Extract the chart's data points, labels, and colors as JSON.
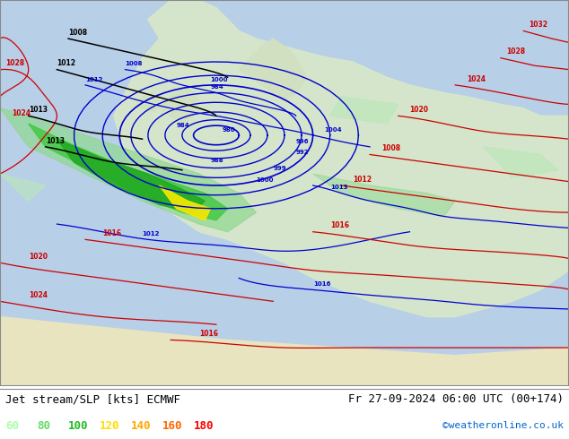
{
  "title_left": "Jet stream/SLP [kts] ECMWF",
  "title_right": "Fr 27-09-2024 06:00 UTC (00+174)",
  "credit": "©weatheronline.co.uk",
  "legend_values": [
    "60",
    "80",
    "100",
    "120",
    "140",
    "160",
    "180"
  ],
  "legend_colors": [
    "#aaffaa",
    "#66dd66",
    "#22bb22",
    "#ffdd00",
    "#ffaa00",
    "#ff6600",
    "#ff0000"
  ],
  "background_color": "#e8f4e8",
  "bg_color_main": "#d4ecd4",
  "isobar_color_blue": "#0000cc",
  "isobar_color_red": "#cc0000",
  "isobar_color_black": "#000000",
  "figsize": [
    6.34,
    4.9
  ],
  "dpi": 100
}
